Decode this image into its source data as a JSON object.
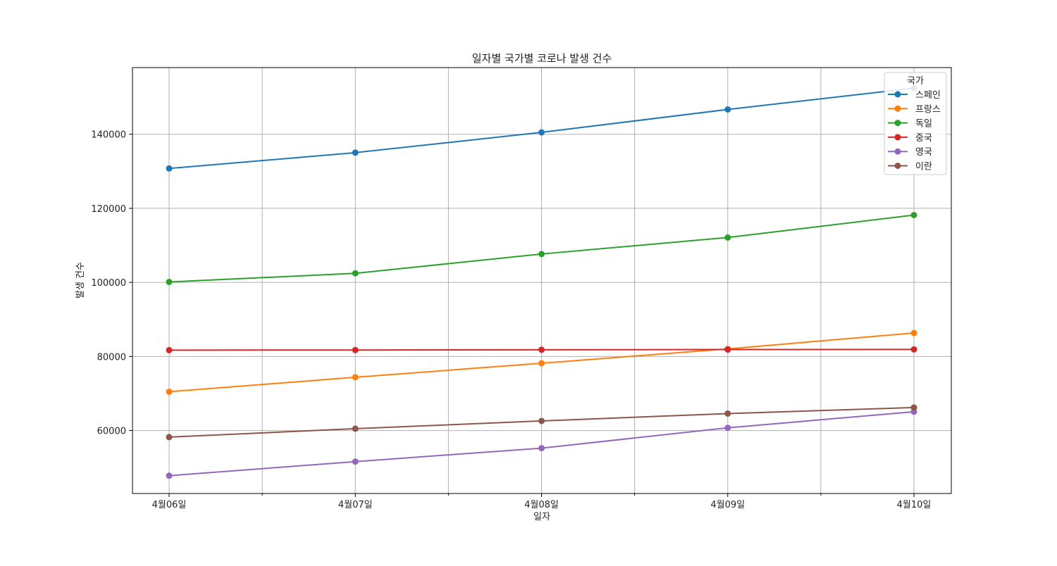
{
  "chart_data": {
    "type": "line",
    "title": "일자별 국가별 코로나 발생 건수",
    "xlabel": "일자",
    "ylabel": "발생 건수",
    "categories": [
      "4월06일",
      "4월07일",
      "4월08일",
      "4월09일",
      "4월10일"
    ],
    "ylim": [
      43000,
      158000
    ],
    "yticks": [
      60000,
      80000,
      100000,
      120000,
      140000
    ],
    "grid": true,
    "legend": {
      "title": "국가",
      "placement": "top-right"
    },
    "series": [
      {
        "name": "스페인",
        "color": "#1f77b4",
        "values": [
          130759,
          135032,
          140510,
          146690,
          152446
        ]
      },
      {
        "name": "프랑스",
        "color": "#ff7f0e",
        "values": [
          70478,
          74390,
          78167,
          82048,
          86334
        ]
      },
      {
        "name": "독일",
        "color": "#2ca02c",
        "values": [
          100123,
          102453,
          107663,
          112113,
          118181
        ]
      },
      {
        "name": "중국",
        "color": "#d62728",
        "values": [
          81708,
          81740,
          81802,
          81865,
          81907
        ]
      },
      {
        "name": "영국",
        "color": "#9467bd",
        "values": [
          47806,
          51608,
          55242,
          60733,
          65077
        ]
      },
      {
        "name": "이란",
        "color": "#8c564b",
        "values": [
          58226,
          60500,
          62589,
          64586,
          66220
        ]
      }
    ]
  }
}
